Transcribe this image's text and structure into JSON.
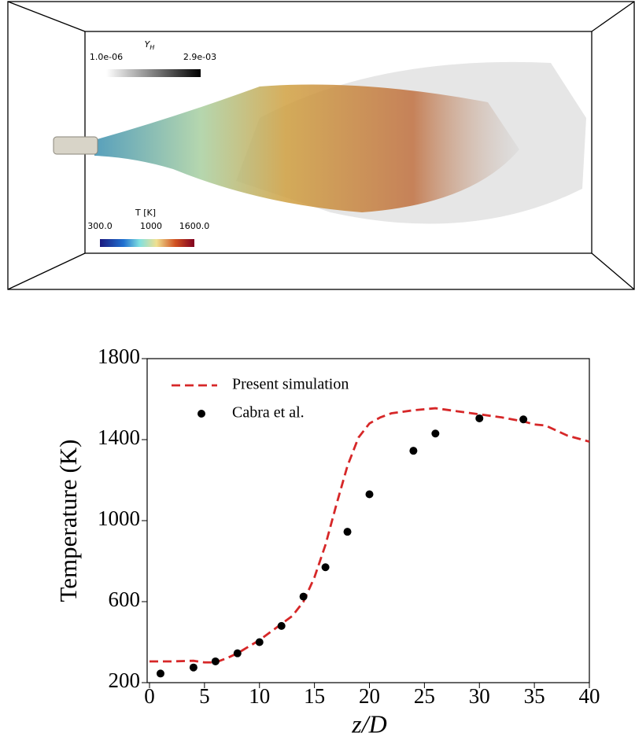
{
  "render": {
    "colorbars": [
      {
        "title": "Y",
        "subscript": "H",
        "labels": [
          "1.0e-06",
          "2.9e-03"
        ]
      },
      {
        "title": "T [K]",
        "labels": [
          "300.0",
          "1000",
          "1600.0"
        ]
      }
    ]
  },
  "chart_data": {
    "type": "line",
    "xlabel": "z/D",
    "ylabel": "Temperature (K)",
    "xlim": [
      0,
      40
    ],
    "xticks": [
      0,
      5,
      10,
      15,
      20,
      25,
      30,
      35,
      40
    ],
    "ylim": [
      200,
      1800
    ],
    "yticks": [
      200,
      600,
      1000,
      1400,
      1800
    ],
    "legend": "upper left",
    "series": [
      {
        "name": "Present simulation",
        "type": "line",
        "style": "dashed",
        "color": "#d62728",
        "x": [
          0,
          2,
          4,
          5,
          6,
          7,
          8,
          10,
          12,
          13,
          14,
          15,
          16,
          17,
          18,
          19,
          20,
          21,
          22,
          24,
          26,
          28,
          30,
          32,
          34,
          35,
          36,
          38,
          40
        ],
        "values": [
          305,
          305,
          308,
          300,
          300,
          320,
          345,
          410,
          490,
          530,
          600,
          720,
          880,
          1080,
          1270,
          1410,
          1480,
          1510,
          1530,
          1545,
          1555,
          1540,
          1525,
          1510,
          1490,
          1475,
          1470,
          1420,
          1390
        ]
      },
      {
        "name": "Cabra et al.",
        "type": "scatter",
        "color": "#000000",
        "x": [
          1,
          4,
          6,
          8,
          10,
          12,
          14,
          16,
          18,
          20,
          24,
          26,
          30,
          34
        ],
        "values": [
          245,
          275,
          305,
          345,
          400,
          480,
          625,
          770,
          945,
          1130,
          1345,
          1430,
          1505,
          1500
        ]
      }
    ]
  }
}
